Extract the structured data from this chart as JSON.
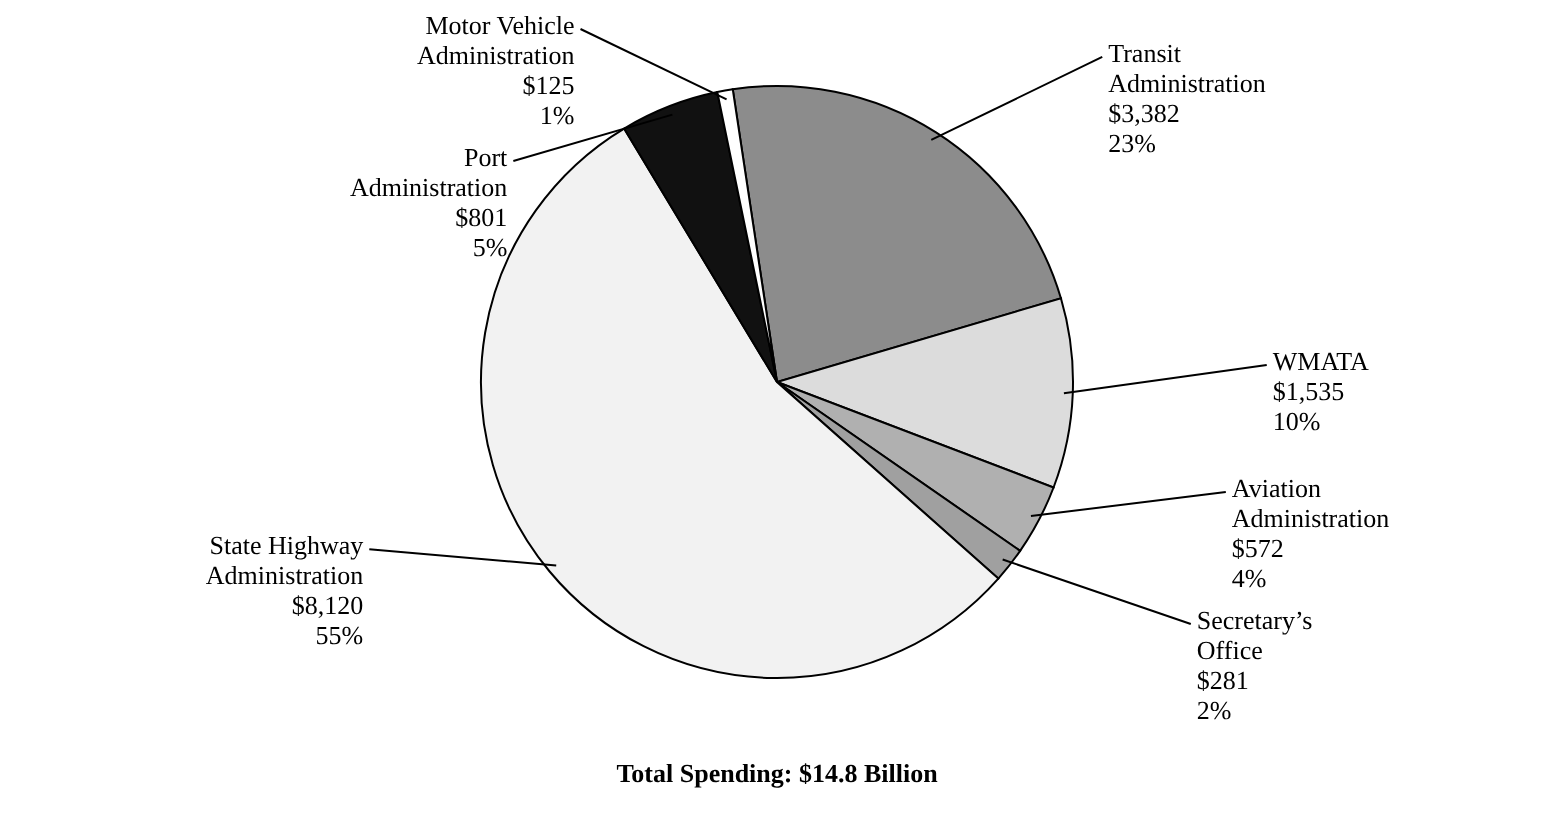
{
  "chart_data": {
    "type": "pie",
    "title": "Total Spending:  $14.8 Billion",
    "categories": [
      "Transit Administration",
      "WMATA",
      "Aviation Administration",
      "Secretary’s Office",
      "State Highway Administration",
      "Port Administration",
      "Motor Vehicle Administration"
    ],
    "values": [
      3382,
      1535,
      572,
      281,
      8120,
      801,
      125
    ],
    "value_labels": [
      "$3,382\n23%",
      "$1,535\n10%",
      "$572\n4%",
      "$281\n2%",
      "$8,120\n55%",
      "$801\n5%",
      "$125\n1%"
    ],
    "colors": [
      "#8c8c8c",
      "#dcdcdc",
      "#b0b0b0",
      "#a0a0a0",
      "#f2f2f2",
      "#111111",
      "#ffffff"
    ],
    "legend": false
  }
}
